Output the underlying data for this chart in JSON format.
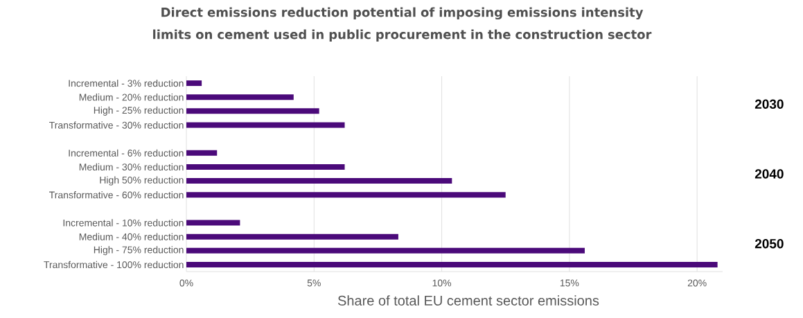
{
  "chart_data": {
    "type": "bar",
    "orientation": "horizontal",
    "title": "Direct emissions reduction potential of imposing emissions intensity limits on cement used in public procurement in the construction sector",
    "xlabel": "Share of total EU cement sector emissions",
    "categories": [
      "Incremental - 3% reduction",
      "Medium - 20% reduction",
      "High - 25% reduction",
      "Transformative - 30% reduction",
      null,
      "Incremental - 6% reduction",
      "Medium - 30% reduction",
      "High  50% reduction",
      "Transformative - 60% reduction",
      null,
      "Incremental - 10% reduction",
      "Medium - 40% reduction",
      "High - 75% reduction",
      "Transformative - 100% reduction"
    ],
    "values": [
      0.6,
      4.2,
      5.2,
      6.2,
      null,
      1.2,
      6.2,
      10.4,
      12.5,
      null,
      2.1,
      8.3,
      15.6,
      20.8
    ],
    "color": "#4b0a7a",
    "xlim": [
      0,
      21
    ],
    "xticks": [
      {
        "value": 0,
        "label": "0%"
      },
      {
        "value": 5,
        "label": "5%"
      },
      {
        "value": 10,
        "label": "10%"
      },
      {
        "value": 15,
        "label": "15%"
      },
      {
        "value": 20,
        "label": "20%"
      }
    ],
    "grid": "x",
    "annotations": [
      "2030",
      "2040",
      "2050"
    ]
  }
}
